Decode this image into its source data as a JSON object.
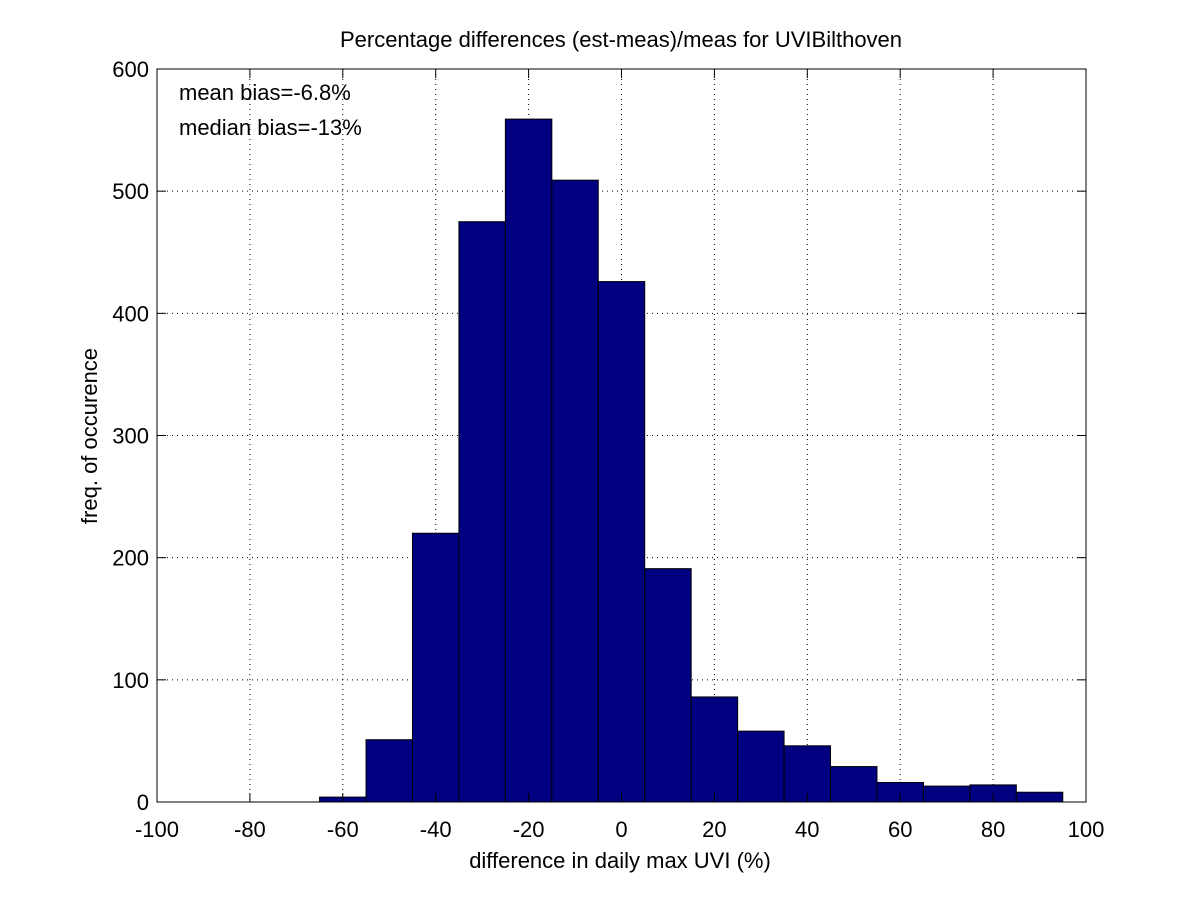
{
  "chart_data": {
    "type": "bar",
    "title": "Percentage differences (est-meas)/meas for UVIBilthoven",
    "xlabel": "difference in daily max UVI (%)",
    "ylabel": "freq. of occurence",
    "xlim": [
      -100,
      100
    ],
    "ylim": [
      0,
      600
    ],
    "xticks": [
      -100,
      -80,
      -60,
      -40,
      -20,
      0,
      20,
      40,
      60,
      80,
      100
    ],
    "yticks": [
      0,
      100,
      200,
      300,
      400,
      500,
      600
    ],
    "grid": true,
    "bar_color": "#000080",
    "bin_width": 10,
    "bin_centers": [
      -90,
      -80,
      -70,
      -60,
      -50,
      -40,
      -30,
      -20,
      -10,
      0,
      10,
      20,
      30,
      40,
      50,
      60,
      70,
      80,
      90
    ],
    "values": [
      0,
      0,
      0,
      4,
      51,
      220,
      475,
      559,
      509,
      426,
      191,
      86,
      58,
      46,
      29,
      16,
      13,
      14,
      8
    ],
    "annotations": [
      "mean bias=-6.8%",
      "median bias=-13%"
    ]
  }
}
